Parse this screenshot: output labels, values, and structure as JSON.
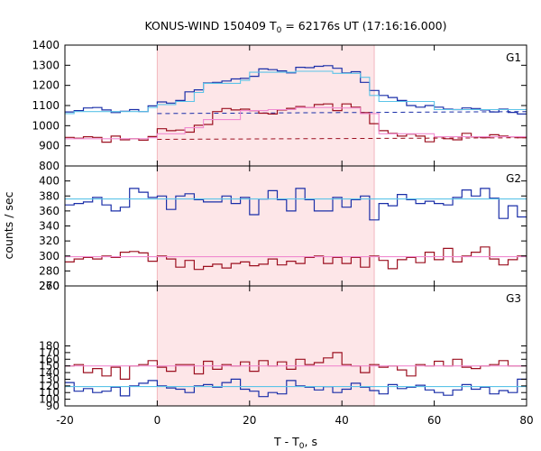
{
  "chart_data": {
    "type": "line",
    "title_main": "KONUS-WIND 150409 T",
    "title_sub": "0",
    "title_rest": " = 62176s UT (17:16:16.000)",
    "xlabel_main": "T - T",
    "xlabel_sub": "0",
    "xlabel_rest": ", s",
    "ylabel": "counts / sec",
    "xlim": [
      -20,
      80
    ],
    "xticks": [
      -20,
      0,
      20,
      40,
      60,
      80
    ],
    "highlight_interval": [
      0,
      47
    ],
    "colors": {
      "highlight": "#fde6e8",
      "series_blue": "#1a2ea8",
      "series_red": "#9c1020",
      "model_cyan": "#5cc4e8",
      "model_pink": "#f08ad0"
    },
    "panels": [
      {
        "label": "G1",
        "ylim": [
          800,
          1400
        ],
        "yticks": [
          800,
          900,
          1000,
          1100,
          1200,
          1300,
          1400
        ],
        "series": [
          {
            "color": "blue",
            "edges": [
              -20,
              -18,
              -16,
              -14,
              -12,
              -10,
              -8,
              -6,
              -4,
              -2,
              0,
              2,
              4,
              6,
              8,
              10,
              12,
              14,
              16,
              18,
              20,
              22,
              24,
              26,
              28,
              30,
              32,
              34,
              36,
              38,
              40,
              42,
              44,
              46,
              48,
              50,
              52,
              54,
              56,
              58,
              60,
              62,
              64,
              66,
              68,
              70,
              72,
              74,
              76,
              78,
              80
            ],
            "values": [
              1068,
              1075,
              1088,
              1090,
              1078,
              1065,
              1072,
              1080,
              1070,
              1098,
              1118,
              1112,
              1125,
              1168,
              1178,
              1212,
              1215,
              1222,
              1232,
              1235,
              1245,
              1282,
              1278,
              1272,
              1262,
              1290,
              1288,
              1295,
              1298,
              1285,
              1262,
              1268,
              1215,
              1175,
              1150,
              1140,
              1125,
              1100,
              1092,
              1100,
              1092,
              1082,
              1080,
              1088,
              1085,
              1078,
              1068,
              1082,
              1066,
              1058
            ]
          },
          {
            "color": "cyan",
            "edges": [
              -20,
              -18,
              -2,
              0,
              4,
              8,
              10,
              18,
              20,
              30,
              38,
              44,
              46,
              48,
              60,
              80
            ],
            "values": [
              1060,
              1070,
              1090,
              1105,
              1120,
              1165,
              1210,
              1225,
              1265,
              1270,
              1260,
              1240,
              1150,
              1120,
              1080
            ]
          },
          {
            "color": "blue_dashed",
            "points": [
              [
                0,
                1060
              ],
              [
                80,
                1070
              ]
            ]
          },
          {
            "color": "red",
            "edges": [
              -20,
              -18,
              -16,
              -14,
              -12,
              -10,
              -8,
              -6,
              -4,
              -2,
              0,
              2,
              4,
              6,
              8,
              10,
              12,
              14,
              16,
              18,
              20,
              22,
              24,
              26,
              28,
              30,
              32,
              34,
              36,
              38,
              40,
              42,
              44,
              46,
              48,
              50,
              52,
              54,
              56,
              58,
              60,
              62,
              64,
              66,
              68,
              70,
              72,
              74,
              76,
              78,
              80
            ],
            "values": [
              942,
              938,
              945,
              942,
              918,
              948,
              930,
              935,
              928,
              946,
              985,
              975,
              978,
              968,
              1002,
              1006,
              1070,
              1085,
              1078,
              1082,
              1075,
              1062,
              1058,
              1078,
              1086,
              1095,
              1090,
              1105,
              1108,
              1075,
              1108,
              1092,
              1065,
              1010,
              975,
              962,
              948,
              958,
              948,
              920,
              945,
              935,
              930,
              962,
              944,
              940,
              955,
              948,
              945,
              940
            ]
          },
          {
            "color": "pink",
            "edges": [
              -20,
              -2,
              0,
              6,
              10,
              18,
              24,
              30,
              38,
              44,
              48,
              60,
              80
            ],
            "values": [
              935,
              940,
              960,
              990,
              1030,
              1075,
              1080,
              1090,
              1088,
              1060,
              960,
              945
            ]
          },
          {
            "color": "red_dashed",
            "points": [
              [
                0,
                932
              ],
              [
                80,
                940
              ]
            ]
          }
        ]
      },
      {
        "label": "G2",
        "ylim": [
          260,
          420
        ],
        "yticks": [
          260,
          280,
          300,
          320,
          340,
          360,
          380,
          400
        ],
        "series": [
          {
            "color": "blue",
            "edges": [
              -20,
              -18,
              -16,
              -14,
              -12,
              -10,
              -8,
              -6,
              -4,
              -2,
              0,
              2,
              4,
              6,
              8,
              10,
              12,
              14,
              16,
              18,
              20,
              22,
              24,
              26,
              28,
              30,
              32,
              34,
              36,
              38,
              40,
              42,
              44,
              46,
              48,
              50,
              52,
              54,
              56,
              58,
              60,
              62,
              64,
              66,
              68,
              70,
              72,
              74,
              76,
              78,
              80
            ],
            "values": [
              368,
              370,
              372,
              378,
              368,
              360,
              365,
              390,
              385,
              378,
              380,
              362,
              380,
              383,
              375,
              372,
              372,
              380,
              370,
              378,
              355,
              376,
              387,
              375,
              360,
              390,
              375,
              360,
              360,
              378,
              365,
              375,
              380,
              348,
              370,
              367,
              382,
              375,
              370,
              373,
              370,
              368,
              378,
              388,
              380,
              390,
              377,
              350,
              367,
              352
            ]
          },
          {
            "color": "cyan",
            "points": [
              [
                -20,
                376
              ],
              [
                80,
                376
              ]
            ]
          },
          {
            "color": "red",
            "edges": [
              -20,
              -18,
              -16,
              -14,
              -12,
              -10,
              -8,
              -6,
              -4,
              -2,
              0,
              2,
              4,
              6,
              8,
              10,
              12,
              14,
              16,
              18,
              20,
              22,
              24,
              26,
              28,
              30,
              32,
              34,
              36,
              38,
              40,
              42,
              44,
              46,
              48,
              50,
              52,
              54,
              56,
              58,
              60,
              62,
              64,
              66,
              68,
              70,
              72,
              74,
              76,
              78,
              80
            ],
            "values": [
              292,
              296,
              298,
              296,
              300,
              298,
              305,
              306,
              304,
              293,
              300,
              296,
              285,
              294,
              282,
              286,
              289,
              284,
              290,
              292,
              287,
              289,
              296,
              288,
              293,
              290,
              298,
              300,
              290,
              298,
              290,
              298,
              285,
              300,
              294,
              283,
              295,
              298,
              291,
              305,
              295,
              310,
              292,
              300,
              305,
              312,
              296,
              288,
              295,
              300
            ]
          },
          {
            "color": "pink",
            "points": [
              [
                -20,
                299
              ],
              [
                80,
                299
              ]
            ]
          }
        ]
      },
      {
        "label": "G3",
        "ylim": [
          90,
          270
        ],
        "yticks": [
          90,
          100,
          110,
          120,
          130,
          140,
          150,
          160,
          170,
          180,
          270
        ],
        "series": [
          {
            "color": "red",
            "edges": [
              -20,
              -18,
              -16,
              -14,
              -12,
              -10,
              -8,
              -6,
              -4,
              -2,
              0,
              2,
              4,
              6,
              8,
              10,
              12,
              14,
              16,
              18,
              20,
              22,
              24,
              26,
              28,
              30,
              32,
              34,
              36,
              38,
              40,
              42,
              44,
              46,
              48,
              50,
              52,
              54,
              56,
              58,
              60,
              62,
              64,
              66,
              68,
              70,
              72,
              74,
              76,
              78,
              80
            ],
            "values": [
              150,
              152,
              140,
              146,
              135,
              148,
              130,
              150,
              152,
              158,
              148,
              142,
              152,
              152,
              138,
              157,
              145,
              152,
              150,
              156,
              142,
              158,
              150,
              156,
              145,
              160,
              152,
              155,
              162,
              170,
              152,
              150,
              140,
              152,
              148,
              150,
              144,
              135,
              152,
              150,
              157,
              150,
              160,
              148,
              146,
              150,
              152,
              158,
              150,
              150
            ]
          },
          {
            "color": "pink",
            "points": [
              [
                -20,
                150
              ],
              [
                80,
                150
              ]
            ]
          },
          {
            "color": "blue",
            "edges": [
              -20,
              -18,
              -16,
              -14,
              -12,
              -10,
              -8,
              -6,
              -4,
              -2,
              0,
              2,
              4,
              6,
              8,
              10,
              12,
              14,
              16,
              18,
              20,
              22,
              24,
              26,
              28,
              30,
              32,
              34,
              36,
              38,
              40,
              42,
              44,
              46,
              48,
              50,
              52,
              54,
              56,
              58,
              60,
              62,
              64,
              66,
              68,
              70,
              72,
              74,
              76,
              78,
              80
            ],
            "values": [
              125,
              112,
              116,
              110,
              112,
              118,
              105,
              120,
              124,
              128,
              120,
              117,
              115,
              110,
              120,
              122,
              118,
              125,
              130,
              115,
              112,
              104,
              110,
              108,
              128,
              120,
              118,
              114,
              119,
              110,
              115,
              124,
              118,
              113,
              108,
              122,
              116,
              118,
              121,
              114,
              110,
              106,
              114,
              122,
              115,
              118,
              108,
              113,
              110,
              130
            ]
          },
          {
            "color": "cyan",
            "points": [
              [
                -20,
                119
              ],
              [
                80,
                119
              ]
            ]
          }
        ]
      }
    ]
  }
}
